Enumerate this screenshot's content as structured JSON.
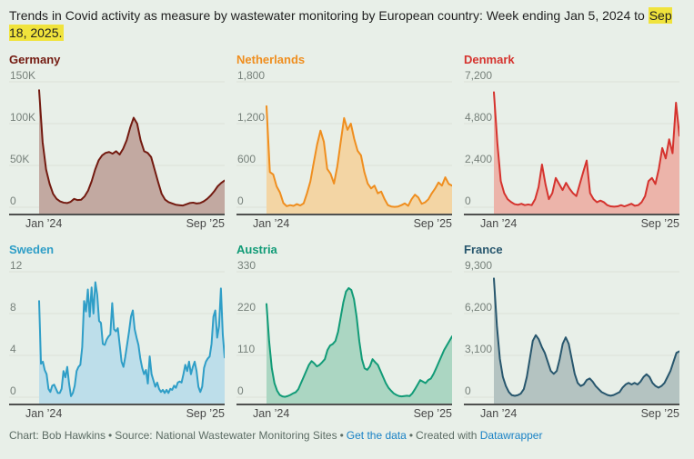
{
  "header": {
    "title_prefix": "Trends in Covid activity as measure by wastewater monitoring by European country: Week ending Jan 5, 2024 to ",
    "title_highlight": "Sep 18, 2025.",
    "highlight_color": "#f0e33c"
  },
  "footer": {
    "chart_credit": "Chart: Bob Hawkins",
    "separator": "•",
    "source": "Source: National Wastewater Monitoring Sites",
    "get_data_link": "Get the data",
    "created_with": "Created with",
    "tool_link": "Datawrapper",
    "link_color": "#1a82c5"
  },
  "chart_data": [
    {
      "type": "area",
      "title": "Germany",
      "color": "#731a10",
      "fill": "#c2a9a1",
      "ymax": 150000,
      "ylim": [
        0,
        150000
      ],
      "y_ticks": [
        "150K",
        "100K",
        "50K",
        "0"
      ],
      "x_ticks": [
        "Jan ’24",
        "Sep ’25"
      ],
      "values": [
        140000,
        78000,
        45000,
        28000,
        16000,
        10000,
        7000,
        5500,
        5000,
        6500,
        10000,
        8500,
        9000,
        13000,
        20000,
        31000,
        45000,
        56000,
        62000,
        65000,
        66000,
        64000,
        67000,
        63000,
        70000,
        80000,
        95000,
        107000,
        100000,
        80000,
        67000,
        65000,
        60000,
        45000,
        30000,
        16000,
        9000,
        6000,
        4500,
        3000,
        2500,
        2000,
        3500,
        5000,
        5500,
        4500,
        5000,
        7000,
        10000,
        14000,
        19000,
        25000,
        29000,
        32000
      ]
    },
    {
      "type": "area",
      "title": "Netherlands",
      "color": "#ef8e1f",
      "fill": "#f3d5a4",
      "ymax": 1800,
      "ylim": [
        0,
        1800
      ],
      "y_ticks": [
        "1,800",
        "1,200",
        "600",
        "0"
      ],
      "x_ticks": [
        "Jan ’24",
        "Sep ’25"
      ],
      "values": [
        1450,
        505,
        470,
        300,
        210,
        60,
        15,
        30,
        20,
        45,
        25,
        55,
        200,
        370,
        640,
        900,
        1100,
        940,
        550,
        480,
        340,
        590,
        940,
        1280,
        1110,
        1200,
        980,
        810,
        745,
        505,
        340,
        270,
        310,
        200,
        225,
        115,
        30,
        10,
        5,
        10,
        30,
        55,
        20,
        115,
        180,
        140,
        50,
        70,
        115,
        200,
        270,
        355,
        310,
        430,
        335,
        310
      ]
    },
    {
      "type": "area",
      "title": "Denmark",
      "color": "#d5332e",
      "fill": "#ecb4aa",
      "ymax": 7200,
      "ylim": [
        0,
        7200
      ],
      "y_ticks": [
        "7,200",
        "4,800",
        "2,400",
        "0"
      ],
      "x_ticks": [
        "Jan ’24",
        "Sep ’25"
      ],
      "values": [
        6600,
        3700,
        1500,
        810,
        465,
        300,
        180,
        140,
        200,
        120,
        160,
        120,
        465,
        1160,
        2450,
        1330,
        465,
        810,
        1680,
        1330,
        985,
        1400,
        1070,
        810,
        640,
        1330,
        2020,
        2680,
        810,
        465,
        290,
        380,
        290,
        120,
        50,
        30,
        50,
        120,
        50,
        120,
        200,
        85,
        120,
        290,
        640,
        1500,
        1680,
        1330,
        2200,
        3400,
        2800,
        3900,
        3100,
        6000,
        4100
      ]
    },
    {
      "type": "area",
      "title": "Sweden",
      "color": "#2f9ec7",
      "fill": "#bddeea",
      "ymax": 12,
      "ylim": [
        0,
        12
      ],
      "y_ticks": [
        "12",
        "8",
        "4",
        "0"
      ],
      "x_ticks": [
        "Jan ’24",
        "Sep ’25"
      ],
      "values": [
        9.2,
        3.2,
        3.4,
        2.6,
        2.2,
        0.8,
        0.5,
        1.1,
        1.2,
        0.8,
        0.4,
        0.4,
        0.8,
        2.5,
        1.9,
        2.9,
        1.3,
        0.1,
        0.4,
        1.1,
        2.5,
        2.9,
        3.1,
        4.8,
        9.2,
        8.2,
        10.3,
        7.7,
        10.5,
        8.0,
        11.0,
        9.8,
        7.3,
        7.1,
        5.1,
        5.0,
        5.5,
        5.8,
        6.0,
        9.0,
        6.5,
        6.3,
        6.6,
        5.0,
        3.4,
        2.9,
        3.9,
        5.1,
        6.3,
        7.7,
        8.3,
        6.5,
        5.7,
        5.0,
        3.7,
        2.8,
        2.2,
        2.6,
        1.3,
        3.9,
        2.2,
        1.6,
        1.0,
        1.4,
        0.8,
        0.5,
        0.7,
        0.4,
        0.7,
        0.4,
        0.8,
        0.7,
        1.1,
        0.9,
        1.4,
        1.5,
        1.4,
        2.2,
        3.1,
        2.5,
        3.4,
        2.2,
        2.9,
        3.4,
        2.5,
        1.0,
        0.5,
        1.0,
        2.8,
        3.4,
        3.7,
        3.9,
        5.1,
        7.7,
        8.3,
        5.7,
        6.8,
        10.4,
        6.0,
        3.8
      ]
    },
    {
      "type": "area",
      "title": "Austria",
      "color": "#119b77",
      "fill": "#abd6c2",
      "ymax": 330,
      "ylim": [
        0,
        330
      ],
      "y_ticks": [
        "330",
        "220",
        "110",
        "0"
      ],
      "x_ticks": [
        "Jan ’24",
        "Sep ’25"
      ],
      "values": [
        245,
        147,
        76,
        37,
        17,
        6,
        2,
        1,
        3,
        6,
        10,
        13,
        21,
        37,
        53,
        69,
        85,
        95,
        89,
        81,
        85,
        92,
        100,
        124,
        136,
        140,
        148,
        172,
        211,
        250,
        278,
        287,
        282,
        258,
        211,
        148,
        100,
        76,
        72,
        81,
        100,
        92,
        85,
        69,
        53,
        37,
        25,
        17,
        10,
        6,
        3,
        2,
        3,
        4,
        3,
        10,
        21,
        33,
        45,
        41,
        37,
        45,
        49,
        61,
        76,
        92,
        108,
        124,
        136,
        148,
        160
      ]
    },
    {
      "type": "area",
      "title": "France",
      "color": "#27566d",
      "fill": "#b4c3c1",
      "ymax": 9300,
      "ylim": [
        0,
        9300
      ],
      "y_ticks": [
        "9,300",
        "6,200",
        "3,100",
        "0"
      ],
      "x_ticks": [
        "Jan ’24",
        "Sep ’25"
      ],
      "values": [
        8800,
        5300,
        2840,
        1500,
        830,
        380,
        150,
        100,
        150,
        270,
        600,
        1500,
        2840,
        4180,
        4600,
        4290,
        3730,
        3290,
        2620,
        1950,
        1730,
        1950,
        2840,
        3960,
        4440,
        3960,
        2840,
        1730,
        1060,
        830,
        940,
        1270,
        1390,
        1160,
        830,
        600,
        380,
        270,
        160,
        110,
        160,
        270,
        380,
        710,
        940,
        1060,
        940,
        1060,
        940,
        1160,
        1500,
        1700,
        1500,
        1060,
        830,
        710,
        830,
        1060,
        1500,
        1950,
        2620,
        3290,
        3400
      ]
    }
  ],
  "style": {
    "background": "#e8efe8",
    "gridline_color": "#dbe2d9",
    "axis_color": "#1c1c1c",
    "ytick_color": "#76807a",
    "xtick_color": "#474747"
  }
}
